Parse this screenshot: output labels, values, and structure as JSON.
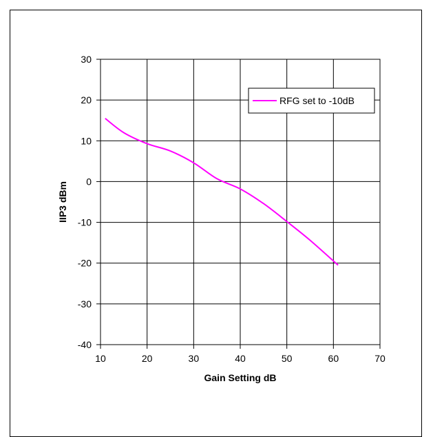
{
  "chart_data": {
    "type": "line",
    "title": "",
    "xlabel": "Gain Setting dB",
    "ylabel": "IIP3 dBm",
    "xlim": [
      10,
      70
    ],
    "ylim": [
      -40,
      30
    ],
    "x_ticks": [
      10,
      20,
      30,
      40,
      50,
      60,
      70
    ],
    "y_ticks": [
      30,
      20,
      10,
      0,
      -10,
      -20,
      -30,
      -40
    ],
    "grid": true,
    "legend_position": "top-right",
    "series": [
      {
        "name": "RFG set to -10dB",
        "color": "#ff00ff",
        "x": [
          11,
          15,
          20,
          25,
          30,
          35,
          40,
          45,
          50,
          55,
          61
        ],
        "y": [
          15.5,
          12,
          9.3,
          7.5,
          4.6,
          0.7,
          -1.8,
          -5.4,
          -9.8,
          -14.4,
          -20.5
        ]
      }
    ]
  }
}
